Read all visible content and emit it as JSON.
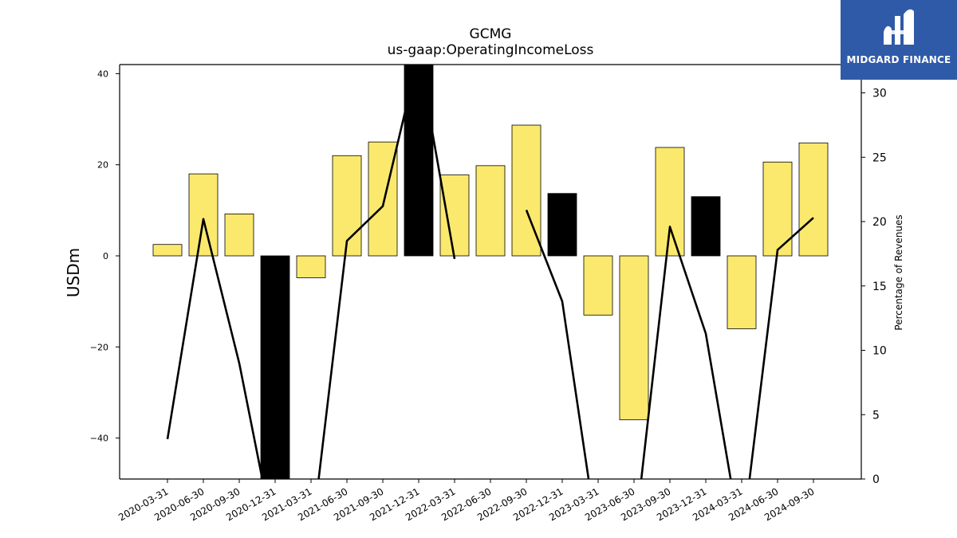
{
  "brand": {
    "name": "MIDGARD FINANCE",
    "bg_color": "#2f5aa8"
  },
  "chart_data": {
    "type": "bar",
    "title": "GCMG",
    "subtitle": "us-gaap:OperatingIncomeLoss",
    "ylabel": "USDm",
    "y2label": "Percentage of Revenues",
    "ylim": [
      -49,
      42
    ],
    "y2lim": [
      0,
      32.2
    ],
    "yticks": [
      -40,
      -20,
      0,
      20,
      40
    ],
    "y2ticks": [
      0,
      5,
      10,
      15,
      20,
      25,
      30
    ],
    "categories": [
      "2020-03-31",
      "2020-06-30",
      "2020-09-30",
      "2020-12-31",
      "2021-03-31",
      "2021-06-30",
      "2021-09-30",
      "2021-12-31",
      "2022-03-31",
      "2022-06-30",
      "2022-09-30",
      "2022-12-31",
      "2023-03-31",
      "2023-06-30",
      "2023-09-30",
      "2023-12-31",
      "2024-03-31",
      "2024-06-30",
      "2024-09-30"
    ],
    "series": [
      {
        "type": "bar",
        "axis": "left",
        "values": [
          2.5,
          18,
          9.2,
          -49,
          -4.8,
          22,
          25,
          42,
          17.8,
          19.8,
          28.7,
          13.7,
          -13,
          -36,
          23.8,
          13,
          -16,
          20.6,
          24.8
        ],
        "bar_colors": [
          "#fbe96e",
          "#fbe96e",
          "#fbe96e",
          "#000000",
          "#fbe96e",
          "#fbe96e",
          "#fbe96e",
          "#000000",
          "#fbe96e",
          "#fbe96e",
          "#fbe96e",
          "#000000",
          "#fbe96e",
          "#fbe96e",
          "#fbe96e",
          "#000000",
          "#fbe96e",
          "#fbe96e",
          "#fbe96e"
        ]
      },
      {
        "type": "line",
        "axis": "right",
        "color": "#000000",
        "values": [
          3.1,
          20.2,
          9,
          -5,
          -5,
          18.5,
          21.2,
          33,
          17.1,
          null,
          20.9,
          13.8,
          -5,
          -5,
          19.6,
          11.3,
          -5,
          17.8,
          20.3
        ]
      }
    ],
    "grid": false
  }
}
